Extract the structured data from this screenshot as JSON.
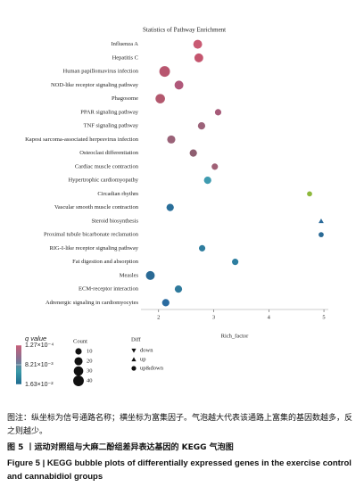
{
  "chart_data": {
    "type": "bubble",
    "title": "Statistics of Pathway Enrichment",
    "x_label": "Rich_factor",
    "categories": [
      "Influenza A",
      "Hepatitis C",
      "Human papillomavirus infection",
      "NOD-like receptor signaling pathway",
      "Phagosome",
      "PPAR signaling pathway",
      "TNF signaling pathway",
      "Kaposi sarcoma-associated herpesvirus infection",
      "Osteoclast differentiation",
      "Cardiac muscle contraction",
      "Hypertrophic cardiomyopathy",
      "Circadian rhythm",
      "Vascular smooth muscle contraction",
      "Steroid biosynthesis",
      "Proximal tubule bicarbonate reclamation",
      "RIG-I-like receptor signaling pathway",
      "Fat digestion and absorption",
      "Measles",
      "ECM-receptor interaction",
      "Adrenergic signaling in cardiomyocytes"
    ],
    "values": [
      2.71,
      2.73,
      2.11,
      2.37,
      2.03,
      3.08,
      2.78,
      2.23,
      2.63,
      3.02,
      2.89,
      4.74,
      2.21,
      4.95,
      4.95,
      2.79,
      3.39,
      1.85,
      2.36,
      2.13
    ],
    "sizes": [
      25,
      25,
      40,
      25,
      30,
      10,
      15,
      20,
      15,
      10,
      15,
      5,
      15,
      5,
      5,
      10,
      10,
      25,
      15,
      15
    ],
    "colors": [
      "#c95a73",
      "#c4556e",
      "#b8566f",
      "#b0587a",
      "#b3586e",
      "#a65a78",
      "#9c6279",
      "#9a6278",
      "#8e5e70",
      "#a06076",
      "#3f9bb0",
      "#8db83b",
      "#2a6f9a",
      "#2a6a9a",
      "#2a6a95",
      "#2f7d9e",
      "#2d7ea0",
      "#2a6a95",
      "#2f7a9c",
      "#2a6ba0"
    ],
    "diff": [
      "up&down",
      "up&down",
      "up&down",
      "up&down",
      "up&down",
      "up&down",
      "up&down",
      "up&down",
      "up&down",
      "up&down",
      "up&down",
      "up&down",
      "up&down",
      "up",
      "up&down",
      "up&down",
      "up&down",
      "up&down",
      "up&down",
      "up&down"
    ],
    "xlim": [
      1.68,
      5.08
    ],
    "xticks": [
      2,
      3,
      4,
      5
    ],
    "color_legend": {
      "title": "q value",
      "colors": [
        "#c8607a",
        "#8a6f90",
        "#3a9aa8",
        "#1f6a8f"
      ],
      "ticks": [
        {
          "value": 0.000127,
          "label": "1.27×10⁻⁴"
        },
        {
          "value": 0.00821,
          "label": "8.21×10⁻³"
        },
        {
          "value": 0.0163,
          "label": "1.63×10⁻²"
        }
      ],
      "lim": [
        0.000127,
        0.0163
      ]
    },
    "size_legend": {
      "title": "Count",
      "values": [
        10,
        20,
        30,
        40
      ]
    },
    "shape_legend": {
      "title": "Diff",
      "items": [
        "down",
        "up",
        "up&down"
      ]
    }
  },
  "caption": {
    "note": "图注：纵坐标为信号通路名称；横坐标为富集因子。气泡越大代表该通路上富集的基因数越多，反之则越少。",
    "title_cn": "图 5 丨运动对照组与大麻二酚组差异表达基因的 KEGG 气泡图",
    "title_en": "Figure 5  |  KEGG bubble plots of differentially expressed genes in the exercise control and cannabidiol groups"
  }
}
